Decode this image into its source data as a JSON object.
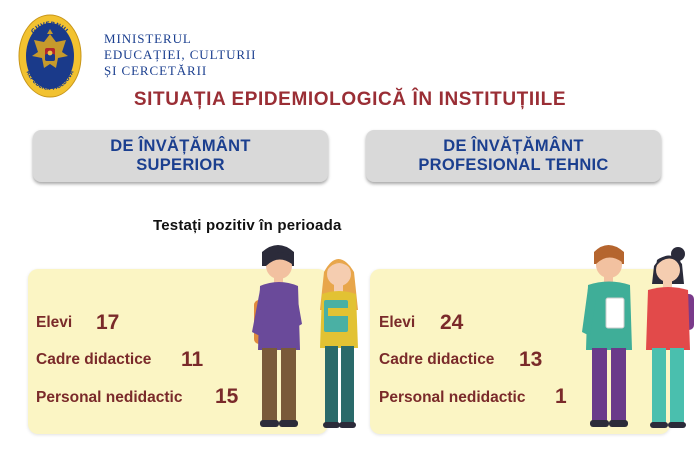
{
  "header": {
    "seal_text_top": "GUVERNUL",
    "seal_text_bottom": "REPUBLICII MOLDOVA",
    "ministry_lines": [
      "MINISTERUL",
      "EDUCAȚIEI, CULTURII",
      "ȘI CERCETĂRII"
    ]
  },
  "headline": "SITUAȚIA EPIDEMIOLOGICĂ ÎN INSTITUȚIILE",
  "institutions": [
    {
      "line1": "DE ÎNVĂȚĂMÂNT",
      "line2": "SUPERIOR"
    },
    {
      "line1": "DE ÎNVĂȚĂMÂNT",
      "line2": "PROFESIONAL TEHNIC"
    }
  ],
  "period_label": "Testați pozitiv în perioada",
  "panels": [
    {
      "stats": [
        {
          "label": "Elevi",
          "value": "17"
        },
        {
          "label": "Cadre didactice",
          "value": "11"
        },
        {
          "label": "Personal nedidactic",
          "value": "15"
        }
      ]
    },
    {
      "stats": [
        {
          "label": "Elevi",
          "value": "24"
        },
        {
          "label": "Cadre didactice",
          "value": "13"
        },
        {
          "label": "Personal nedidactic",
          "value": "1"
        }
      ]
    }
  ],
  "colors": {
    "ministry_blue": "#1b3f8f",
    "headline_red": "#9a2e35",
    "box_gray": "#d9d9d9",
    "panel_yellow": "#fbf5c4",
    "stat_brown": "#7a2a2a"
  },
  "icons": [
    "moldova-coat-of-arms-seal",
    "student-boy-illustration",
    "student-girl-illustration"
  ]
}
